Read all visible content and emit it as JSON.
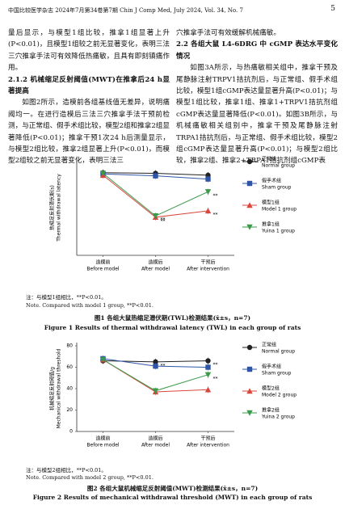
{
  "header": {
    "journal": "中国比较医学杂志 2024年7月第34卷第7期  Chin J Comp Med, July 2024, Vol. 34, No. 7",
    "page": "5"
  },
  "left_column": [
    "量后显示，与模型1组比较，推拿1组显著上升(P<0.01)，且模型1组较之前无显著变化，表明三法三穴推拿手法可有效降低热痛敏，且具有即刻镇痛作用。",
    "2.1.2  机械缩足反射阈值(MWT)在推拿后24 h显著提高",
    "如图2所示，造模前各组基线值无差异，说明痛阈均一。在进行造模后三法三穴推拿手法干预前检测，与正常组、假手术组比较，模型2组和推拿2组显著降低(P<0.01)；推拿干预1次24 h后测量显示，与模型2组比较，推拿2组显著上升(P<0.01)，而模型2组较之前无显著变化，表明三法三"
  ],
  "right_column": [
    "穴推拿手法可有效缓解机械痛敏。",
    "2.2  各组大鼠 L4-6DRG 中 cGMP 表达水平变化情况",
    "如图3A所示，与热痛敏相关组中，推拿干预及尾静脉注射TRPV1拮抗剂后，与正常组、假手术组比较，模型1组cGMP表达量显著升高(P<0.01)；与模型1组比较，推拿1组、推拿1+TRPV1拮抗剂组cGMP表达量显著降低(P<0.01)。如图3B所示，与机械痛敏相关组别中，推拿干预及尾静脉注射TRPA1拮抗剂后，与正常组、假手术组比较，模型2组cGMP表达量显著升高(P<0.01)；与模型2组比较，推拿2组、推拿2+TRPA1拮抗剂组cGMP表"
  ],
  "figures": [
    {
      "chart_data": {
        "type": "line",
        "ylabel": "热缩足反射潜伏期(s)",
        "ylabel_en": "Thermal withdrawal latency",
        "categories": [
          "造模前",
          "造模后",
          "干预后"
        ],
        "categories_en": [
          "Before model",
          "After model",
          "After intervention"
        ],
        "ylim": [
          0,
          15
        ],
        "series": [
          {
            "name": "正常组",
            "name_en": "Normal group",
            "color": "#222222",
            "marker": "circle",
            "values": [
              13,
              12.9,
              12.6
            ],
            "significance": [
              null,
              null,
              null
            ]
          },
          {
            "name": "假手术组",
            "name_en": "Sham group",
            "color": "#2f56a6",
            "marker": "square",
            "values": [
              12.8,
              12.5,
              12
            ],
            "significance": [
              null,
              null,
              null
            ]
          },
          {
            "name": "模型1组",
            "name_en": "Model 1 group",
            "color": "#d9463b",
            "marker": "triangle",
            "values": [
              12.6,
              6,
              7
            ],
            "significance": [
              null,
              "**",
              "**"
            ]
          },
          {
            "name": "推拿1组",
            "name_en": "Yuina 1 group",
            "color": "#3a9a4a",
            "marker": "triangle-down",
            "values": [
              12.9,
              6.2,
              10
            ],
            "significance": [
              null,
              "**",
              "**"
            ]
          }
        ]
      },
      "note": "注：与模型1组相比，**P<0.01。",
      "note_en": "Note. Compared with model 1 group, **P<0.01.",
      "caption": "图1  各组大鼠热缩足潜伏期(TWL)检测结果(x̄±s，n=7)",
      "caption_en": "Figure 1  Results of thermal withdrawal latency (TWL) in each group of rats"
    },
    {
      "chart_data": {
        "type": "line",
        "ylabel": "机械缩足反射阈值/g",
        "ylabel_en": "Mechanical withdrawal threshold",
        "categories": [
          "造模前",
          "造模后",
          "干预后"
        ],
        "categories_en": [
          "Before model",
          "After model",
          "After intervention"
        ],
        "ylim": [
          0,
          80
        ],
        "yticks": [
          0,
          20,
          40,
          60,
          80
        ],
        "series": [
          {
            "name": "正常组",
            "name_en": "Normal group",
            "color": "#222222",
            "marker": "circle",
            "values": [
              66,
              65,
              66
            ],
            "significance": [
              null,
              "**",
              "**"
            ]
          },
          {
            "name": "假手术组",
            "name_en": "Sham group",
            "color": "#2f56a6",
            "marker": "square",
            "values": [
              68,
              61,
              60
            ],
            "significance": [
              null,
              null,
              null
            ]
          },
          {
            "name": "模型2组",
            "name_en": "Model 2 group",
            "color": "#d9463b",
            "marker": "triangle",
            "values": [
              67,
              37,
              39
            ],
            "significance": [
              null,
              null,
              null
            ]
          },
          {
            "name": "推拿2组",
            "name_en": "Yuina 2 group",
            "color": "#3a9a4a",
            "marker": "triangle-down",
            "values": [
              67,
              38,
              53
            ],
            "significance": [
              null,
              null,
              "**"
            ]
          }
        ]
      },
      "note": "注：与模型2组相比，**P<0.01。",
      "note_en": "Note. Compared with model 2 group, **P<0.01.",
      "caption": "图2  各组大鼠机械缩足反射阈值(MWT)检测结果(x̄±s，n=7)",
      "caption_en": "Figure 2  Results of mechanical withdrawal threshold (MWT) in each group of rats"
    }
  ]
}
